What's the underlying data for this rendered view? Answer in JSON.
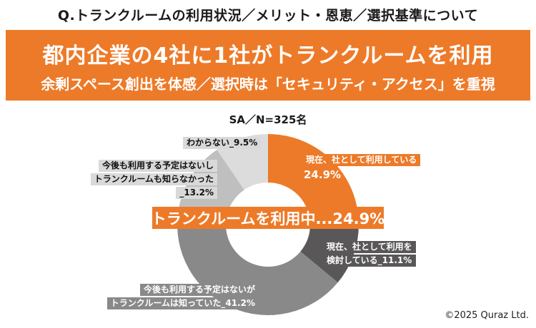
{
  "header": {
    "question": "Q.トランクルームの利用状況／メリット・恩恵／選択基準について",
    "banner_line1": "都内企業の4社に1社がトランクルームを利用",
    "banner_line2": "余剰スペース創出を体感／選択時は「セキュリティ・アクセス」を重視"
  },
  "chart_data": {
    "type": "pie",
    "subtype": "donut",
    "title": "SA／N=325名",
    "sample_size": 325,
    "start_angle_deg": 0,
    "direction": "clockwise",
    "center_callout": "トランクルームを利用中...24.9%",
    "segments": [
      {
        "label": "現在、社として利用している",
        "value": 24.9,
        "color": "#ED7A28",
        "label_lines": [
          "現在、社として利用している"
        ],
        "value_text": "24.9%"
      },
      {
        "label": "現在、社として利用を検討している",
        "value": 11.1,
        "color": "#595757",
        "label_lines": [
          "現在、社として利用を",
          "検討している_11.1%"
        ]
      },
      {
        "label": "今後も利用する予定はないがトランクルームは知っていた",
        "value": 41.2,
        "color": "#898989",
        "label_lines": [
          "今後も利用する予定はないが",
          "トランクルームは知っていた_41.2%"
        ]
      },
      {
        "label": "今後も利用する予定はないしトランクルームも知らなかった",
        "value": 13.2,
        "color": "#BFBFBF",
        "label_lines": [
          "今後も利用する予定はないし",
          "トランクルームも知らなかった",
          "_13.2%"
        ]
      },
      {
        "label": "わからない",
        "value": 9.5,
        "color": "#DCDCDC",
        "label_lines": [
          "わからない_9.5%"
        ]
      }
    ]
  },
  "colors": {
    "accent_orange": "#ED7A28",
    "dark_gray": "#595757",
    "medium_gray": "#898989",
    "light_gray": "#BFBFBF",
    "lightest_gray": "#DCDCDC",
    "label_light_bg": "#D9D9D9",
    "text_black": "#1a1a1a"
  },
  "footer": {
    "copyright": "©2025 Quraz Ltd."
  }
}
